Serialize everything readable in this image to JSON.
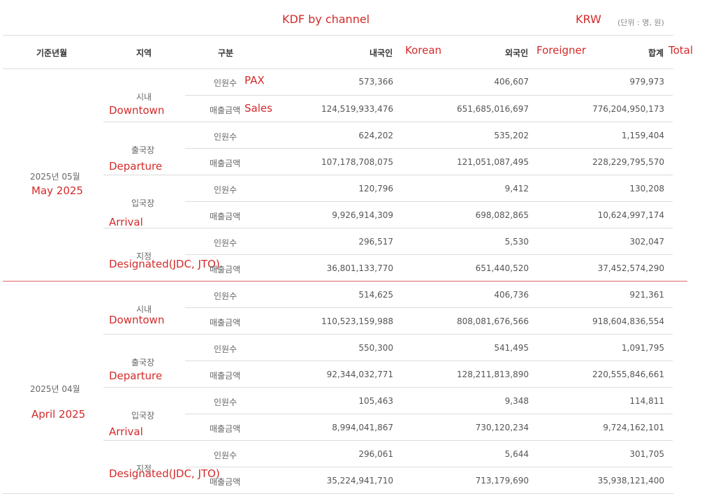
{
  "annotations": {
    "title": "KDF by channel",
    "currency": "KRW",
    "unit": "(단위 : 명, 원)",
    "col_korean": "Korean",
    "col_foreigner": "Foreigner",
    "col_total": "Total",
    "pax": "PAX",
    "sales": "Sales"
  },
  "headers": {
    "month": "기준년월",
    "region": "지역",
    "type": "구분",
    "korean": "내국인",
    "foreigner": "외국인",
    "total": "합계"
  },
  "groups": [
    {
      "month": "2025년 05월",
      "month_en": "May 2025",
      "regions": [
        {
          "name": "시내",
          "name_en": "Downtown",
          "pax": {
            "label": "인원수",
            "korean": "573,366",
            "foreigner": "406,607",
            "total": "979,973"
          },
          "sales": {
            "label": "매출금액",
            "korean": "124,519,933,476",
            "foreigner": "651,685,016,697",
            "total": "776,204,950,173"
          }
        },
        {
          "name": "출국장",
          "name_en": "Departure",
          "pax": {
            "label": "인원수",
            "korean": "624,202",
            "foreigner": "535,202",
            "total": "1,159,404"
          },
          "sales": {
            "label": "매출금액",
            "korean": "107,178,708,075",
            "foreigner": "121,051,087,495",
            "total": "228,229,795,570"
          }
        },
        {
          "name": "입국장",
          "name_en": "Arrival",
          "pax": {
            "label": "인원수",
            "korean": "120,796",
            "foreigner": "9,412",
            "total": "130,208"
          },
          "sales": {
            "label": "매출금액",
            "korean": "9,926,914,309",
            "foreigner": "698,082,865",
            "total": "10,624,997,174"
          }
        },
        {
          "name": "지정",
          "name_en": "Designated(JDC, JTO)",
          "pax": {
            "label": "인원수",
            "korean": "296,517",
            "foreigner": "5,530",
            "total": "302,047"
          },
          "sales": {
            "label": "매출금액",
            "korean": "36,801,133,770",
            "foreigner": "651,440,520",
            "total": "37,452,574,290"
          }
        }
      ]
    },
    {
      "month": "2025년 04월",
      "month_en": "April 2025",
      "regions": [
        {
          "name": "시내",
          "name_en": "Downtown",
          "pax": {
            "label": "인원수",
            "korean": "514,625",
            "foreigner": "406,736",
            "total": "921,361"
          },
          "sales": {
            "label": "매출금액",
            "korean": "110,523,159,988",
            "foreigner": "808,081,676,566",
            "total": "918,604,836,554"
          }
        },
        {
          "name": "출국장",
          "name_en": "Departure",
          "pax": {
            "label": "인원수",
            "korean": "550,300",
            "foreigner": "541,495",
            "total": "1,091,795"
          },
          "sales": {
            "label": "매출금액",
            "korean": "92,344,032,771",
            "foreigner": "128,211,813,890",
            "total": "220,555,846,661"
          }
        },
        {
          "name": "입국장",
          "name_en": "Arrival",
          "pax": {
            "label": "인원수",
            "korean": "105,463",
            "foreigner": "9,348",
            "total": "114,811"
          },
          "sales": {
            "label": "매출금액",
            "korean": "8,994,041,867",
            "foreigner": "730,120,234",
            "total": "9,724,162,101"
          }
        },
        {
          "name": "지정",
          "name_en": "Designated(JDC, JTO)",
          "pax": {
            "label": "인원수",
            "korean": "296,061",
            "foreigner": "5,644",
            "total": "301,705"
          },
          "sales": {
            "label": "매출금액",
            "korean": "35,224,941,710",
            "foreigner": "713,179,690",
            "total": "35,938,121,400"
          }
        }
      ]
    }
  ]
}
